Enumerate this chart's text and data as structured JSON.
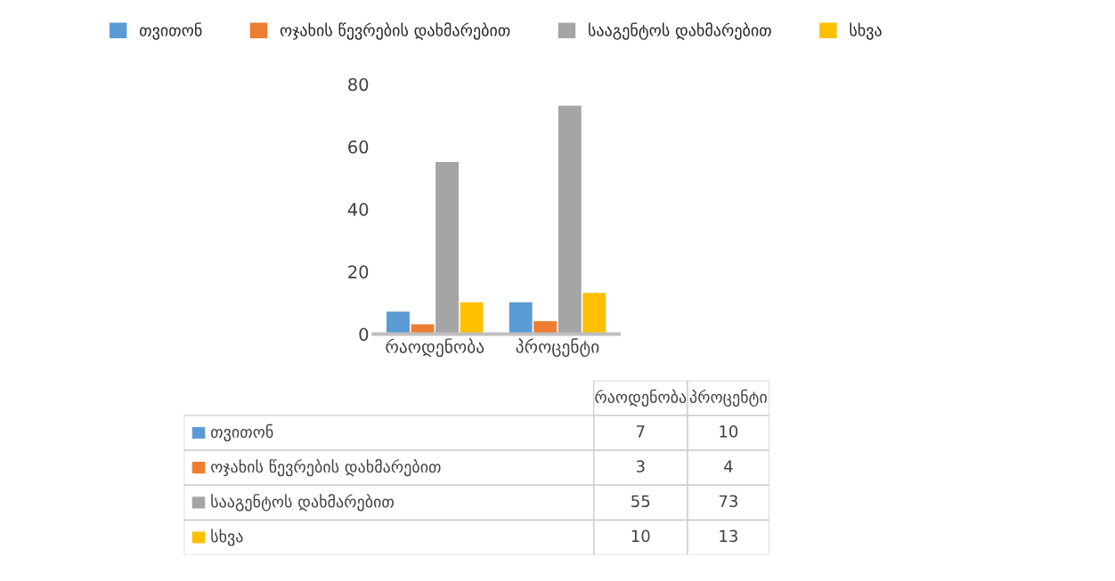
{
  "chart_data": [
    {
      "type": "bar",
      "categories": [
        "რაოდენობა",
        "პროცენტი"
      ],
      "series": [
        {
          "name": "თვითონ",
          "color": "#5b9bd5",
          "values": [
            7,
            10
          ]
        },
        {
          "name": "ოჯახის წევრების დახმარებით",
          "color": "#ed7d31",
          "values": [
            3,
            4
          ]
        },
        {
          "name": "სააგენტოს დახმარებით",
          "color": "#a5a5a5",
          "values": [
            55,
            73
          ]
        },
        {
          "name": "სხვა",
          "color": "#ffc000",
          "values": [
            10,
            13
          ]
        }
      ],
      "ylim": [
        0,
        80
      ],
      "yticks": [
        0,
        20,
        40,
        60,
        80
      ],
      "grid": false,
      "legend": "top"
    },
    {
      "type": "other",
      "categories": [
        "რაოდენობა",
        "პროცენტი"
      ],
      "y_categories": [
        "თვითონ",
        "ოჯახის წევრების დახმარებით",
        "სააგენტოს დახმარებით",
        "სხვა"
      ],
      "colors": [
        "#5b9bd5",
        "#ed7d31",
        "#a5a5a5",
        "#ffc000"
      ],
      "cell_labels": [
        [
          "7",
          "10"
        ],
        [
          "3",
          "4"
        ],
        [
          "55",
          "73"
        ],
        [
          "10",
          "13"
        ]
      ]
    }
  ]
}
